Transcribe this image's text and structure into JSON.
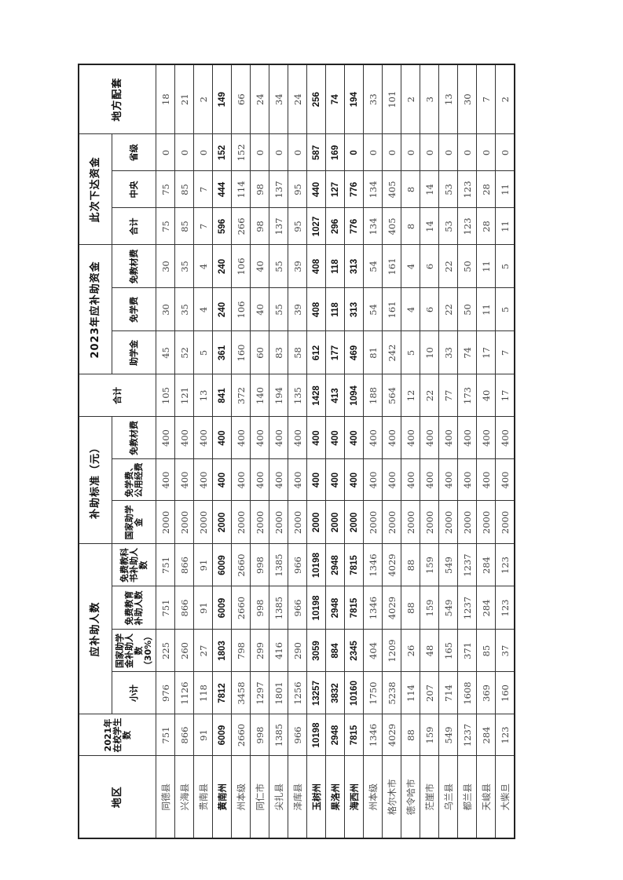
{
  "headers": {
    "region": "地区",
    "students_2021": "2021年在校学生数",
    "group_people": "应补助人数",
    "subtotal": "小计",
    "national_grant_people": "国家助学金补助人数（30%）",
    "free_edu_people": "免费教育补助人数",
    "free_textbook_people": "免费教科书补助人数",
    "group_standard": "补助标准（元）",
    "std_national_grant": "国家助学金",
    "std_free_tuition": "免学费、公用经费",
    "std_free_textbook": "免教材费",
    "group_2023": "2023年应补助资金",
    "total_2023": "合计",
    "grant_2023": "助学金",
    "tuition_2023": "免学费",
    "textbook_2023": "免教材费",
    "group_issued": "此次下达资金",
    "issued_total": "合计",
    "issued_central": "中央",
    "issued_province": "省级",
    "local_match": "地方配套"
  },
  "rows": [
    {
      "bold": false,
      "cells": [
        "同德县",
        "751",
        "976",
        "225",
        "751",
        "751",
        "2000",
        "400",
        "400",
        "105",
        "45",
        "30",
        "30",
        "75",
        "75",
        "0",
        "18"
      ]
    },
    {
      "bold": false,
      "cells": [
        "兴海县",
        "866",
        "1126",
        "260",
        "866",
        "866",
        "2000",
        "400",
        "400",
        "121",
        "52",
        "35",
        "35",
        "85",
        "85",
        "0",
        "21"
      ]
    },
    {
      "bold": false,
      "cells": [
        "贵南县",
        "91",
        "118",
        "27",
        "91",
        "91",
        "2000",
        "400",
        "400",
        "13",
        "5",
        "4",
        "4",
        "7",
        "7",
        "0",
        "2"
      ]
    },
    {
      "bold": true,
      "cells": [
        "黄南州",
        "6009",
        "7812",
        "1803",
        "6009",
        "6009",
        "2000",
        "400",
        "400",
        "841",
        "361",
        "240",
        "240",
        "596",
        "444",
        "152",
        "149"
      ]
    },
    {
      "bold": false,
      "cells": [
        "州本级",
        "2660",
        "3458",
        "798",
        "2660",
        "2660",
        "2000",
        "400",
        "400",
        "372",
        "160",
        "106",
        "106",
        "266",
        "114",
        "152",
        "66"
      ]
    },
    {
      "bold": false,
      "cells": [
        "同仁市",
        "998",
        "1297",
        "299",
        "998",
        "998",
        "2000",
        "400",
        "400",
        "140",
        "60",
        "40",
        "40",
        "98",
        "98",
        "0",
        "24"
      ]
    },
    {
      "bold": false,
      "cells": [
        "尖扎县",
        "1385",
        "1801",
        "416",
        "1385",
        "1385",
        "2000",
        "400",
        "400",
        "194",
        "83",
        "55",
        "55",
        "137",
        "137",
        "0",
        "34"
      ]
    },
    {
      "bold": false,
      "cells": [
        "泽库县",
        "966",
        "1256",
        "290",
        "966",
        "966",
        "2000",
        "400",
        "400",
        "135",
        "58",
        "39",
        "39",
        "95",
        "95",
        "0",
        "24"
      ]
    },
    {
      "bold": true,
      "cells": [
        "玉树州",
        "10198",
        "13257",
        "3059",
        "10198",
        "10198",
        "2000",
        "400",
        "400",
        "1428",
        "612",
        "408",
        "408",
        "1027",
        "440",
        "587",
        "256"
      ]
    },
    {
      "bold": true,
      "cells": [
        "果洛州",
        "2948",
        "3832",
        "884",
        "2948",
        "2948",
        "2000",
        "400",
        "400",
        "413",
        "177",
        "118",
        "118",
        "296",
        "127",
        "169",
        "74"
      ]
    },
    {
      "bold": true,
      "cells": [
        "海西州",
        "7815",
        "10160",
        "2345",
        "7815",
        "7815",
        "2000",
        "400",
        "400",
        "1094",
        "469",
        "313",
        "313",
        "776",
        "776",
        "0",
        "194"
      ]
    },
    {
      "bold": false,
      "cells": [
        "州本级",
        "1346",
        "1750",
        "404",
        "1346",
        "1346",
        "2000",
        "400",
        "400",
        "188",
        "81",
        "54",
        "54",
        "134",
        "134",
        "0",
        "33"
      ]
    },
    {
      "bold": false,
      "cells": [
        "格尔木市",
        "4029",
        "5238",
        "1209",
        "4029",
        "4029",
        "2000",
        "400",
        "400",
        "564",
        "242",
        "161",
        "161",
        "405",
        "405",
        "0",
        "101"
      ]
    },
    {
      "bold": false,
      "cells": [
        "德令哈市",
        "88",
        "114",
        "26",
        "88",
        "88",
        "2000",
        "400",
        "400",
        "12",
        "5",
        "4",
        "4",
        "8",
        "8",
        "0",
        "2"
      ]
    },
    {
      "bold": false,
      "cells": [
        "茫崖市",
        "159",
        "207",
        "48",
        "159",
        "159",
        "2000",
        "400",
        "400",
        "22",
        "10",
        "6",
        "6",
        "14",
        "14",
        "0",
        "3"
      ]
    },
    {
      "bold": false,
      "cells": [
        "乌兰县",
        "549",
        "714",
        "165",
        "549",
        "549",
        "2000",
        "400",
        "400",
        "77",
        "33",
        "22",
        "22",
        "53",
        "53",
        "0",
        "13"
      ]
    },
    {
      "bold": false,
      "cells": [
        "都兰县",
        "1237",
        "1608",
        "371",
        "1237",
        "1237",
        "2000",
        "400",
        "400",
        "173",
        "74",
        "50",
        "50",
        "123",
        "123",
        "0",
        "30"
      ]
    },
    {
      "bold": false,
      "cells": [
        "天峻县",
        "284",
        "369",
        "85",
        "284",
        "284",
        "2000",
        "400",
        "400",
        "40",
        "17",
        "11",
        "11",
        "28",
        "28",
        "0",
        "7"
      ]
    },
    {
      "bold": false,
      "cells": [
        "大柴旦",
        "123",
        "160",
        "37",
        "123",
        "123",
        "2000",
        "400",
        "400",
        "17",
        "7",
        "5",
        "5",
        "11",
        "11",
        "0",
        "2"
      ]
    }
  ]
}
